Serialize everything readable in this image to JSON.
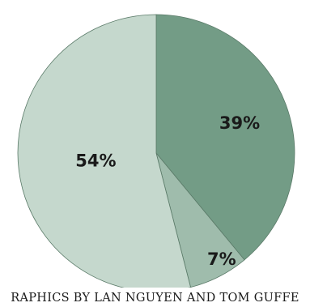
{
  "chart_data": {
    "type": "pie",
    "title": "",
    "slices": [
      {
        "value": 39,
        "label": "39%",
        "color": "#739c86"
      },
      {
        "value": 7,
        "label": "7%",
        "color": "#9fbcac"
      },
      {
        "value": 54,
        "label": "54%",
        "color": "#c5d8cd"
      }
    ],
    "start": "12 o'clock",
    "direction": "clockwise"
  },
  "credit": "RAPHICS BY LAN NGUYEN AND TOM GUFFE"
}
